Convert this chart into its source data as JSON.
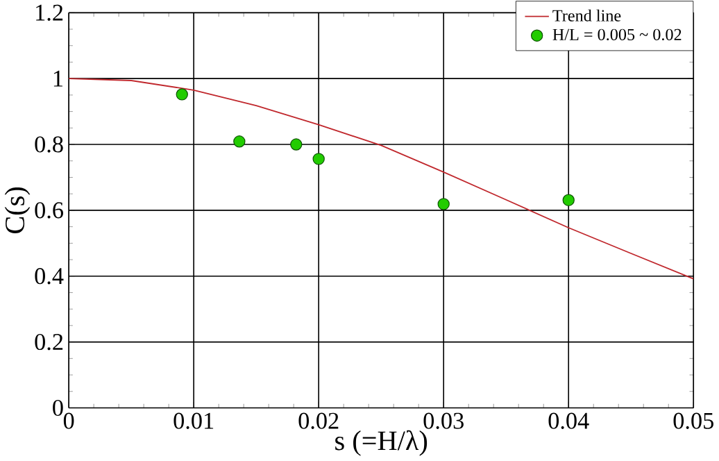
{
  "chart_data": {
    "type": "scatter",
    "xlabel": "s (=H/λ)",
    "ylabel": "C(s)",
    "xlim": [
      0,
      0.05
    ],
    "ylim": [
      0,
      1.2
    ],
    "xticks": [
      0,
      0.01,
      0.02,
      0.03,
      0.04,
      0.05
    ],
    "yticks": [
      0,
      0.2,
      0.4,
      0.6,
      0.8,
      1,
      1.2
    ],
    "grid": true,
    "legend": "top right",
    "series": [
      {
        "name": "Trend line",
        "type": "line",
        "marker": "none",
        "color": "#c0282d",
        "x": [
          0,
          0.005,
          0.01,
          0.015,
          0.02,
          0.025,
          0.03,
          0.035,
          0.04,
          0.045,
          0.05
        ],
        "values": [
          1.0,
          0.994,
          0.965,
          0.918,
          0.86,
          0.797,
          0.716,
          0.632,
          0.547,
          0.469,
          0.392
        ]
      },
      {
        "name": "H/L = 0.005 ~ 0.02",
        "marker": "circle",
        "color": "#22cc00",
        "x": [
          0.00906,
          0.01365,
          0.0182,
          0.02,
          0.03,
          0.04
        ],
        "values": [
          0.952,
          0.809,
          0.8,
          0.756,
          0.619,
          0.631
        ]
      }
    ]
  }
}
